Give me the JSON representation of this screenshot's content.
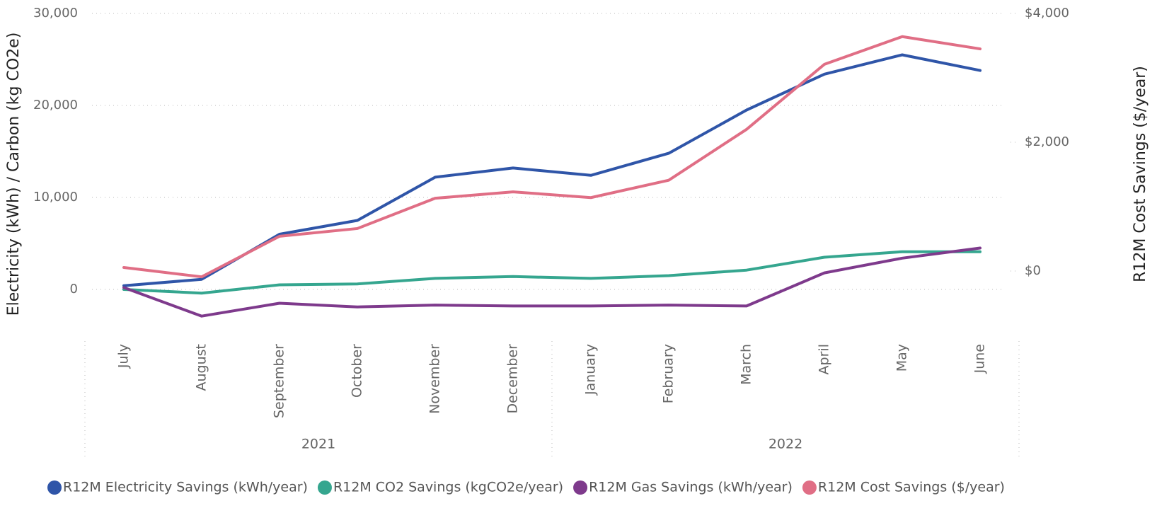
{
  "chart_data": {
    "type": "line",
    "y_label": "Electricity (kWh) / Carbon (kg CO2e)",
    "y2_label": "R12M Cost Savings ($/year)",
    "categories": [
      "July",
      "August",
      "September",
      "October",
      "November",
      "December",
      "January",
      "February",
      "March",
      "April",
      "May",
      "June"
    ],
    "groups": [
      {
        "label": "2021",
        "count": 6
      },
      {
        "label": "2022",
        "count": 6
      }
    ],
    "series": [
      {
        "name": "R12M Electricity Savings (kWh/year)",
        "color": "#2f55a8",
        "values": [
          400,
          1100,
          6000,
          7500,
          12200,
          13200,
          12400,
          14800,
          19500,
          23400,
          25500,
          23800
        ]
      },
      {
        "name": "R12M CO2 Savings (kgCO2e/year)",
        "color": "#35a68f",
        "values": [
          0,
          -400,
          500,
          600,
          1200,
          1400,
          1200,
          1500,
          2100,
          3500,
          4100,
          4100
        ]
      },
      {
        "name": "R12M Gas Savings (kWh/year)",
        "color": "#7e3a8c",
        "values": [
          200,
          -2900,
          -1500,
          -1900,
          -1700,
          -1800,
          -1800,
          -1700,
          -1800,
          1800,
          3400,
          4500
        ]
      },
      {
        "name": "R12M Cost Savings ($/year)",
        "color": "#e06e85",
        "axis": "y2",
        "values": [
          55,
          -90,
          540,
          660,
          1130,
          1230,
          1140,
          1410,
          2200,
          3210,
          3640,
          3450
        ]
      }
    ],
    "ylim": [
      -5000,
      30000
    ],
    "yticks": [
      0,
      {
        "value": 10000,
        "label": "10,000"
      },
      {
        "value": 20000,
        "label": "20,000"
      },
      {
        "value": 30000,
        "label": "30,000"
      }
    ],
    "y2lim": [
      -1000,
      4000
    ],
    "y2ticks": [
      {
        "value": 0,
        "label": "$0"
      },
      {
        "value": 2000,
        "label": "$2,000"
      },
      {
        "value": 4000,
        "label": "$4,000"
      }
    ],
    "grid": true,
    "legend": "bottom"
  }
}
